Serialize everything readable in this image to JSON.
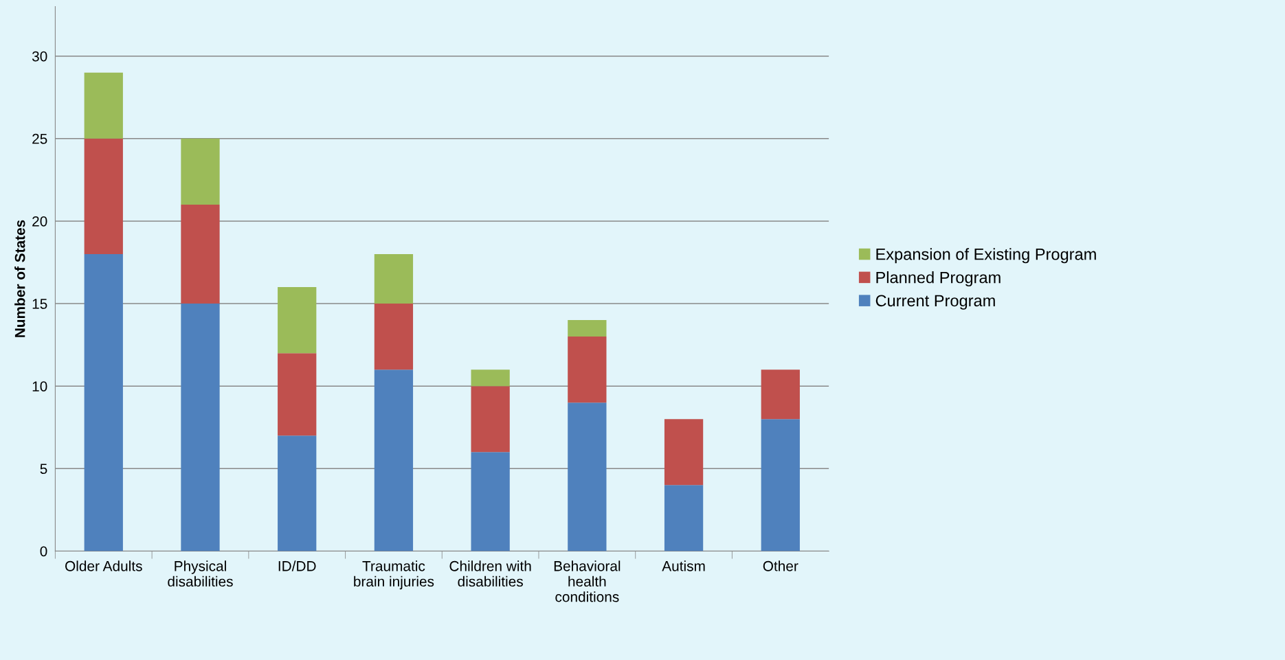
{
  "chart_data": {
    "type": "bar",
    "stacked": true,
    "ylabel": "Number of States",
    "categories": [
      "Older Adults",
      "Physical\ndisabilities",
      "ID/DD",
      "Traumatic\nbrain injuries",
      "Children with\ndisabilities",
      "Behavioral\nhealth\nconditions",
      "Autism",
      "Other"
    ],
    "series": [
      {
        "name": "Current Program",
        "color": "#4f81bd",
        "values": [
          18,
          15,
          7,
          11,
          6,
          9,
          4,
          8
        ]
      },
      {
        "name": "Planned Program",
        "color": "#c0504d",
        "values": [
          7,
          6,
          5,
          4,
          4,
          4,
          4,
          3
        ]
      },
      {
        "name": "Expansion of Existing Program",
        "color": "#9bbb59",
        "values": [
          4,
          4,
          4,
          3,
          1,
          1,
          0,
          0
        ]
      }
    ],
    "ylim": [
      0,
      33
    ],
    "yticks": [
      0,
      5,
      10,
      15,
      20,
      25,
      30
    ],
    "grid": "y",
    "legend": "right"
  }
}
